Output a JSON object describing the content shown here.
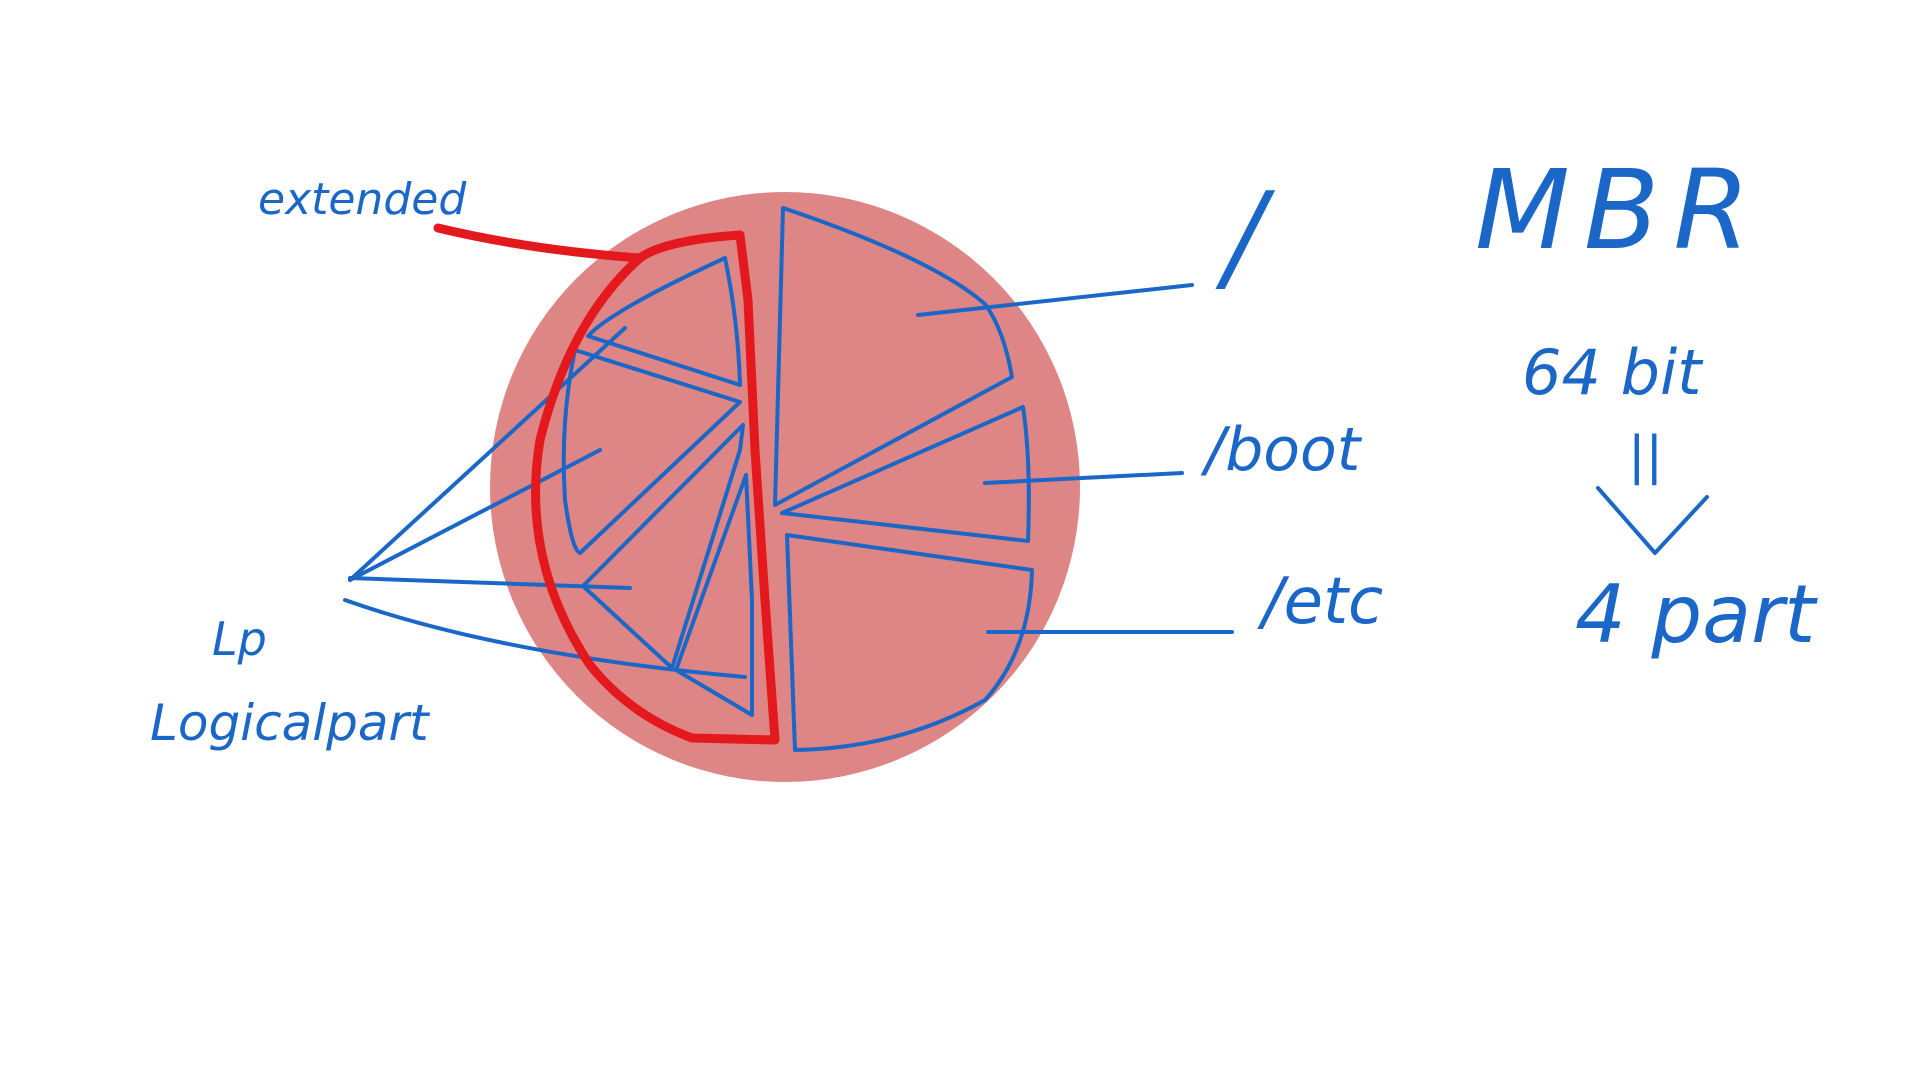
{
  "canvas": {
    "background": "#ffffff"
  },
  "colors": {
    "ink_blue": "#1a67c7",
    "ink_red": "#e3191d",
    "disk_fill": "#de8585"
  },
  "labels": {
    "extended": "extended",
    "lp": "Lp",
    "logical_part": "Logicalpart",
    "root": "/",
    "boot": "/boot",
    "etc": "/etc",
    "mbr": "MBR",
    "bits": "64 bit",
    "equals": "||",
    "arrow": "↓",
    "parts": "4 part"
  }
}
